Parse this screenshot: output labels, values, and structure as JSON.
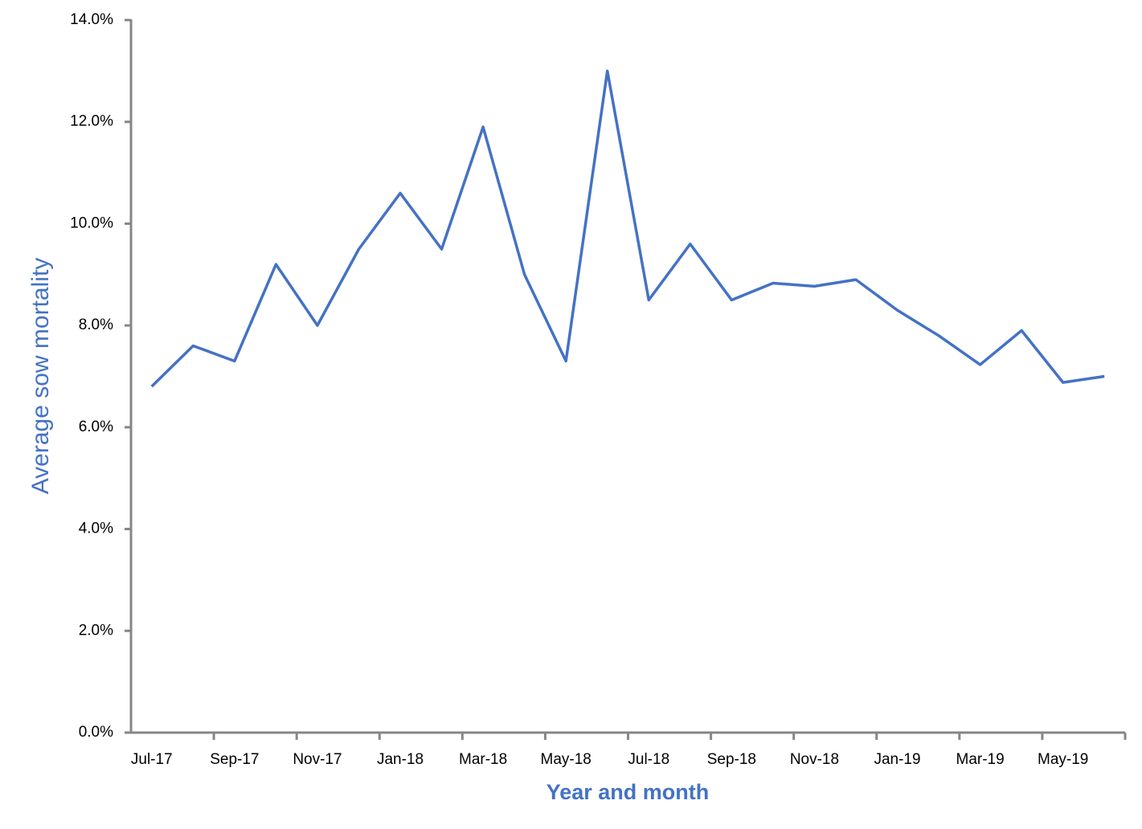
{
  "chart_data": {
    "type": "line",
    "x_label": "Year and month",
    "y_label": "Average sow mortality",
    "categories": [
      "Jul-17",
      null,
      "Sep-17",
      null,
      "Nov-17",
      null,
      "Jan-18",
      null,
      "Mar-18",
      null,
      "May-18",
      null,
      "Jul-18",
      null,
      "Sep-18",
      null,
      "Nov-18",
      null,
      "Jan-19",
      null,
      "Mar-19",
      null,
      "May-19",
      null
    ],
    "series": [
      {
        "color": "#4472c4",
        "values": [
          6.8,
          7.6,
          7.3,
          9.2,
          8.0,
          9.5,
          10.6,
          9.5,
          11.9,
          9.0,
          7.3,
          13.0,
          8.5,
          9.6,
          8.5,
          8.83,
          8.77,
          8.9,
          8.3,
          7.8,
          7.23,
          7.9,
          6.88,
          7.0
        ]
      }
    ],
    "ylim": [
      0,
      14
    ],
    "yticks": [
      {
        "value": 0,
        "label": "0.0%"
      },
      {
        "value": 2,
        "label": "2.0%"
      },
      {
        "value": 4,
        "label": "4.0%"
      },
      {
        "value": 6,
        "label": "6.0%"
      },
      {
        "value": 8,
        "label": "8.0%"
      },
      {
        "value": 10,
        "label": "10.0%"
      },
      {
        "value": 12,
        "label": "12.0%"
      },
      {
        "value": 14,
        "label": "14.0%"
      }
    ],
    "grid": false
  }
}
